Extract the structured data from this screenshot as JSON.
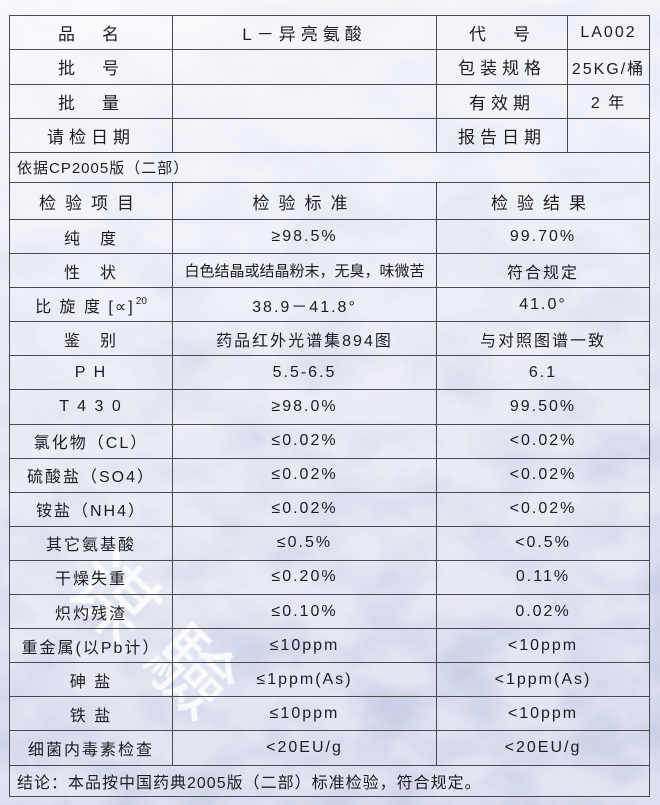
{
  "watermark_text": "谋驗",
  "info_grid": {
    "rows": [
      {
        "l1": "品　名",
        "v1": "L－异亮氨酸",
        "l2": "代　号",
        "v2": "LA002"
      },
      {
        "l1": "批　号",
        "v1": "",
        "l2": "包装规格",
        "v2": "25KG/桶"
      },
      {
        "l1": "批　量",
        "v1": "",
        "l2": "有效期",
        "v2": "2 年"
      },
      {
        "l1": "请检日期",
        "v1": "",
        "l2": "报告日期",
        "v2": ""
      }
    ]
  },
  "basis_note": "依据CP2005版（二部）",
  "results_table": {
    "columns": [
      "检验项目",
      "检验标准",
      "检验结果"
    ],
    "rows": [
      {
        "item": "纯　度",
        "standard": "≥98.5%",
        "result": "99.70%"
      },
      {
        "item": "性　状",
        "standard": "白色结晶或结晶粉末，无臭，味微苦",
        "result": "符合规定"
      },
      {
        "item": "比 旋 度 [∝]",
        "item_sup": "20",
        "standard": "38.9－41.8°",
        "result": "41.0°"
      },
      {
        "item": "鉴　别",
        "standard": "药品红外光谱集894图",
        "result": "与对照图谱一致"
      },
      {
        "item": "P H",
        "standard": "5.5-6.5",
        "result": "6.1"
      },
      {
        "item": "T 4 3 0",
        "standard": "≥98.0%",
        "result": "99.50%"
      },
      {
        "item": "氯化物（CL）",
        "standard": "≤0.02%",
        "result": "<0.02%"
      },
      {
        "item": "硫酸盐（SO4）",
        "standard": "≤0.02%",
        "result": "<0.02%"
      },
      {
        "item": "铵盐（NH4）",
        "standard": "≤0.02%",
        "result": "<0.02%"
      },
      {
        "item": "其它氨基酸",
        "standard": "≤0.5%",
        "result": "<0.5%"
      },
      {
        "item": "干燥失重",
        "standard": "≤0.20%",
        "result": "0.11%"
      },
      {
        "item": "炽灼残渣",
        "standard": "≤0.10%",
        "result": "0.02%"
      },
      {
        "item": "重金属(以Pb计）",
        "standard": "≤10ppm",
        "result": "<10ppm"
      },
      {
        "item": "砷 盐",
        "standard": "≤1ppm(As)",
        "result": "<1ppm(As)"
      },
      {
        "item": "铁 盐",
        "standard": "≤10ppm",
        "result": "<10ppm"
      },
      {
        "item": "细菌内毒素检查",
        "standard": "<20EU/g",
        "result": "<20EU/g"
      }
    ]
  },
  "conclusion": "结论：本品按中国药典2005版（二部）标准检验，符合规定。"
}
